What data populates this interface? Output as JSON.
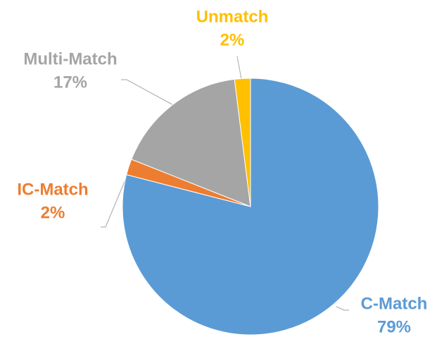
{
  "chart_data": {
    "type": "pie",
    "categories": [
      "C-Match",
      "IC-Match",
      "Multi-Match",
      "Unmatch"
    ],
    "values": [
      79,
      2,
      17,
      2
    ],
    "value_labels": [
      "79%",
      "2%",
      "17%",
      "2%"
    ],
    "colors": [
      "#5b9bd5",
      "#ed7d31",
      "#a5a5a5",
      "#ffc000"
    ]
  }
}
